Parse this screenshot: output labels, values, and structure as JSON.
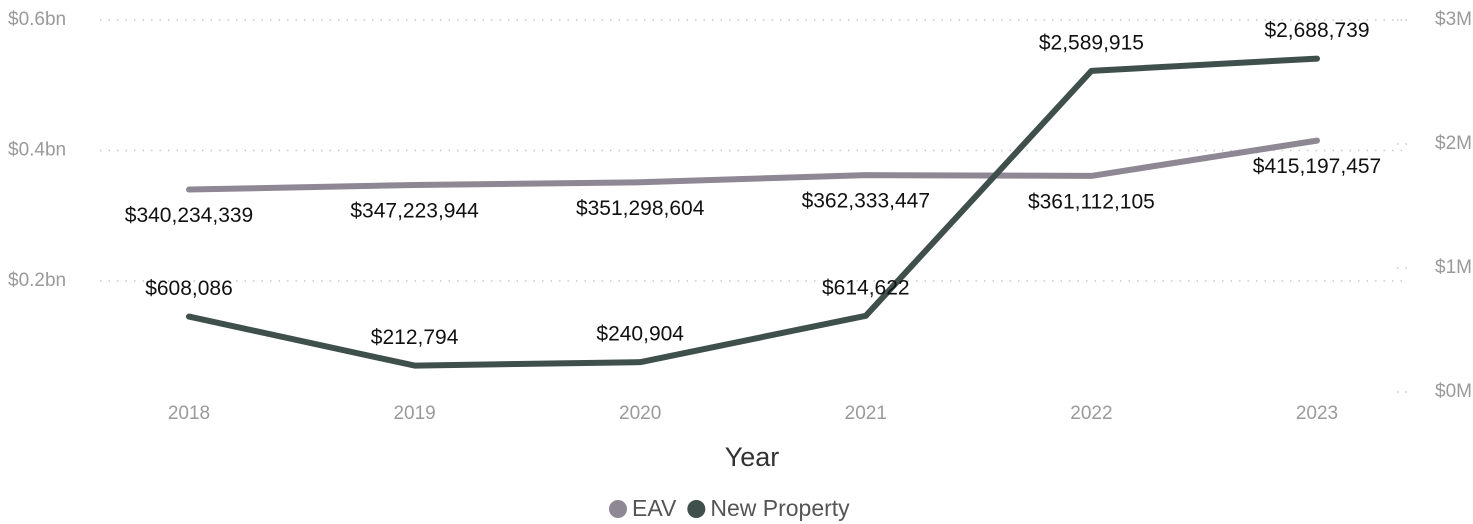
{
  "chart_data": {
    "type": "line",
    "x_label": "Year",
    "categories": [
      "2018",
      "2019",
      "2020",
      "2021",
      "2022",
      "2023"
    ],
    "series": [
      {
        "name": "EAV",
        "color": "#8e8794",
        "axis": "y",
        "values": [
          340234339,
          347223944,
          351298604,
          362333447,
          361112105,
          415197457
        ],
        "value_labels": [
          "$340,234,339",
          "$347,223,944",
          "$351,298,604",
          "$362,333,447",
          "$361,112,105",
          "$415,197,457"
        ]
      },
      {
        "name": "New Property",
        "color": "#3f4f4c",
        "axis": "y2",
        "values": [
          608086,
          212794,
          240904,
          614622,
          2589915,
          2688739
        ],
        "value_labels": [
          "$608,086",
          "$212,794",
          "$240,904",
          "$614,622",
          "$2,589,915",
          "$2,688,739"
        ]
      }
    ],
    "ylim": [
      30000000,
      600000000
    ],
    "yticks": [
      {
        "value": 200000000,
        "label": "$0.2bn"
      },
      {
        "value": 400000000,
        "label": "$0.4bn"
      },
      {
        "value": 600000000,
        "label": "$0.6bn"
      }
    ],
    "y2lim": [
      0,
      3000000
    ],
    "y2ticks": [
      {
        "value": 0,
        "label": "$0M"
      },
      {
        "value": 1000000,
        "label": "$1M"
      },
      {
        "value": 2000000,
        "label": "$2M"
      },
      {
        "value": 3000000,
        "label": "$3M"
      }
    ],
    "grid": true,
    "legend": "bottom"
  }
}
